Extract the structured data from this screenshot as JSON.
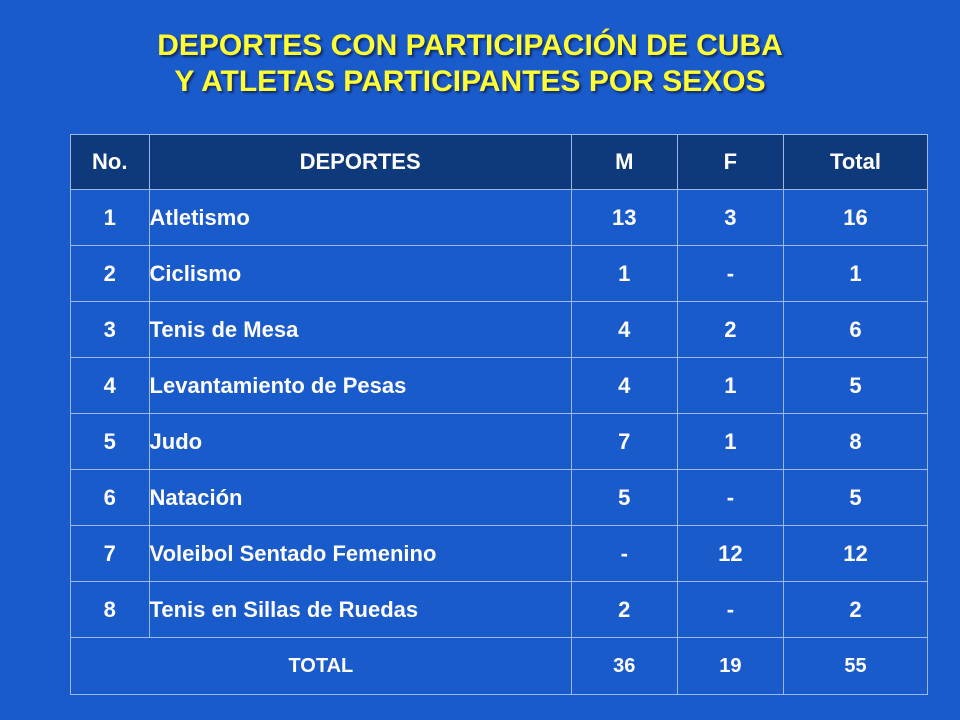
{
  "title": {
    "line1": "DEPORTES CON PARTICIPACIÓN DE CUBA",
    "line2": "Y ATLETAS PARTICIPANTES POR SEXOS"
  },
  "table": {
    "headers": {
      "no": "No.",
      "sport": "DEPORTES",
      "m": "M",
      "f": "F",
      "total": "Total"
    },
    "rows": [
      {
        "no": "1",
        "sport": "Atletismo",
        "m": "13",
        "f": "3",
        "total": "16"
      },
      {
        "no": "2",
        "sport": "Ciclismo",
        "m": "1",
        "f": "-",
        "total": "1"
      },
      {
        "no": "3",
        "sport": "Tenis de Mesa",
        "m": "4",
        "f": "2",
        "total": "6"
      },
      {
        "no": "4",
        "sport": "Levantamiento de Pesas",
        "m": "4",
        "f": "1",
        "total": "5"
      },
      {
        "no": "5",
        "sport": "Judo",
        "m": "7",
        "f": "1",
        "total": "8"
      },
      {
        "no": "6",
        "sport": "Natación",
        "m": "5",
        "f": "-",
        "total": "5"
      },
      {
        "no": "7",
        "sport": "Voleibol Sentado Femenino",
        "m": "-",
        "f": "12",
        "total": "12"
      },
      {
        "no": "8",
        "sport": "Tenis en Sillas de Ruedas",
        "m": "2",
        "f": "-",
        "total": "2"
      }
    ],
    "totals": {
      "label": "TOTAL",
      "m": "36",
      "f": "19",
      "total": "55"
    }
  },
  "colors": {
    "background": "#1a5bcc",
    "title": "#ffff33",
    "header_bg": "#0e3a7c",
    "text": "#ffffff"
  }
}
